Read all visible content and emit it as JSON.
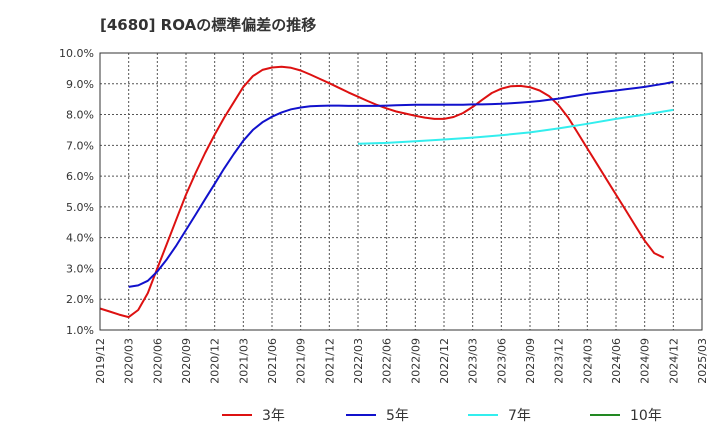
{
  "chart_data": {
    "type": "line",
    "title": "[4680]  ROAの標準偏差の推移",
    "xlabel": "",
    "ylabel": "",
    "ylim": [
      1.0,
      10.0
    ],
    "yticks": [
      "1.0%",
      "2.0%",
      "3.0%",
      "4.0%",
      "5.0%",
      "6.0%",
      "7.0%",
      "8.0%",
      "9.0%",
      "10.0%"
    ],
    "xticks": [
      "2019/12",
      "2020/03",
      "2020/06",
      "2020/09",
      "2020/12",
      "2021/03",
      "2021/06",
      "2021/09",
      "2021/12",
      "2022/03",
      "2022/06",
      "2022/09",
      "2022/12",
      "2023/03",
      "2023/06",
      "2023/09",
      "2023/12",
      "2024/03",
      "2024/06",
      "2024/09",
      "2024/12",
      "2025/03"
    ],
    "grid": true,
    "legend_position": "bottom",
    "series": [
      {
        "name": "3年",
        "color": "#dd1111",
        "points": [
          [
            "2019/12",
            1.7
          ],
          [
            "2020/01",
            1.6
          ],
          [
            "2020/02",
            1.5
          ],
          [
            "2020/03",
            1.42
          ],
          [
            "2020/04",
            1.65
          ],
          [
            "2020/05",
            2.2
          ],
          [
            "2020/06",
            3.0
          ],
          [
            "2020/07",
            3.8
          ],
          [
            "2020/08",
            4.6
          ],
          [
            "2020/09",
            5.4
          ],
          [
            "2020/10",
            6.1
          ],
          [
            "2020/11",
            6.75
          ],
          [
            "2020/12",
            7.35
          ],
          [
            "2021/01",
            7.9
          ],
          [
            "2021/02",
            8.4
          ],
          [
            "2021/03",
            8.9
          ],
          [
            "2021/04",
            9.25
          ],
          [
            "2021/05",
            9.45
          ],
          [
            "2021/06",
            9.53
          ],
          [
            "2021/07",
            9.55
          ],
          [
            "2021/08",
            9.52
          ],
          [
            "2021/09",
            9.43
          ],
          [
            "2021/10",
            9.3
          ],
          [
            "2021/11",
            9.16
          ],
          [
            "2021/12",
            9.02
          ],
          [
            "2022/01",
            8.87
          ],
          [
            "2022/02",
            8.72
          ],
          [
            "2022/03",
            8.58
          ],
          [
            "2022/04",
            8.44
          ],
          [
            "2022/05",
            8.31
          ],
          [
            "2022/06",
            8.2
          ],
          [
            "2022/07",
            8.1
          ],
          [
            "2022/08",
            8.03
          ],
          [
            "2022/09",
            7.96
          ],
          [
            "2022/10",
            7.9
          ],
          [
            "2022/11",
            7.86
          ],
          [
            "2022/12",
            7.86
          ],
          [
            "2023/01",
            7.92
          ],
          [
            "2023/02",
            8.05
          ],
          [
            "2023/03",
            8.25
          ],
          [
            "2023/04",
            8.48
          ],
          [
            "2023/05",
            8.7
          ],
          [
            "2023/06",
            8.84
          ],
          [
            "2023/07",
            8.92
          ],
          [
            "2023/08",
            8.93
          ],
          [
            "2023/09",
            8.89
          ],
          [
            "2023/10",
            8.78
          ],
          [
            "2023/11",
            8.6
          ],
          [
            "2023/12",
            8.3
          ],
          [
            "2024/01",
            7.9
          ],
          [
            "2024/02",
            7.4
          ],
          [
            "2024/03",
            6.9
          ],
          [
            "2024/04",
            6.4
          ],
          [
            "2024/05",
            5.9
          ],
          [
            "2024/06",
            5.4
          ],
          [
            "2024/07",
            4.9
          ],
          [
            "2024/08",
            4.4
          ],
          [
            "2024/09",
            3.9
          ],
          [
            "2024/10",
            3.5
          ],
          [
            "2024/11",
            3.35
          ]
        ]
      },
      {
        "name": "5年",
        "color": "#1111cc",
        "points": [
          [
            "2020/03",
            2.4
          ],
          [
            "2020/04",
            2.45
          ],
          [
            "2020/05",
            2.6
          ],
          [
            "2020/06",
            2.9
          ],
          [
            "2020/07",
            3.3
          ],
          [
            "2020/08",
            3.75
          ],
          [
            "2020/09",
            4.25
          ],
          [
            "2020/10",
            4.75
          ],
          [
            "2020/11",
            5.25
          ],
          [
            "2020/12",
            5.75
          ],
          [
            "2021/01",
            6.25
          ],
          [
            "2021/02",
            6.72
          ],
          [
            "2021/03",
            7.15
          ],
          [
            "2021/04",
            7.5
          ],
          [
            "2021/05",
            7.75
          ],
          [
            "2021/06",
            7.93
          ],
          [
            "2021/07",
            8.07
          ],
          [
            "2021/08",
            8.17
          ],
          [
            "2021/09",
            8.23
          ],
          [
            "2021/10",
            8.27
          ],
          [
            "2021/11",
            8.28
          ],
          [
            "2021/12",
            8.29
          ],
          [
            "2022/01",
            8.29
          ],
          [
            "2022/02",
            8.28
          ],
          [
            "2022/03",
            8.28
          ],
          [
            "2022/04",
            8.28
          ],
          [
            "2022/05",
            8.28
          ],
          [
            "2022/06",
            8.29
          ],
          [
            "2022/07",
            8.3
          ],
          [
            "2022/08",
            8.31
          ],
          [
            "2022/09",
            8.32
          ],
          [
            "2022/10",
            8.32
          ],
          [
            "2022/11",
            8.32
          ],
          [
            "2022/12",
            8.32
          ],
          [
            "2023/01",
            8.32
          ],
          [
            "2023/02",
            8.32
          ],
          [
            "2023/03",
            8.33
          ],
          [
            "2023/04",
            8.33
          ],
          [
            "2023/05",
            8.34
          ],
          [
            "2023/06",
            8.35
          ],
          [
            "2023/07",
            8.37
          ],
          [
            "2023/08",
            8.39
          ],
          [
            "2023/09",
            8.41
          ],
          [
            "2023/10",
            8.44
          ],
          [
            "2023/11",
            8.48
          ],
          [
            "2023/12",
            8.52
          ],
          [
            "2024/01",
            8.57
          ],
          [
            "2024/02",
            8.62
          ],
          [
            "2024/03",
            8.67
          ],
          [
            "2024/04",
            8.71
          ],
          [
            "2024/05",
            8.75
          ],
          [
            "2024/06",
            8.78
          ],
          [
            "2024/07",
            8.82
          ],
          [
            "2024/08",
            8.86
          ],
          [
            "2024/09",
            8.9
          ],
          [
            "2024/10",
            8.95
          ],
          [
            "2024/11",
            9.0
          ],
          [
            "2024/12",
            9.06
          ]
        ]
      },
      {
        "name": "7年",
        "color": "#33eeee",
        "points": [
          [
            "2022/03",
            7.05
          ],
          [
            "2022/06",
            7.08
          ],
          [
            "2022/09",
            7.13
          ],
          [
            "2022/12",
            7.19
          ],
          [
            "2023/03",
            7.25
          ],
          [
            "2023/06",
            7.33
          ],
          [
            "2023/09",
            7.42
          ],
          [
            "2023/12",
            7.55
          ],
          [
            "2024/03",
            7.7
          ],
          [
            "2024/06",
            7.86
          ],
          [
            "2024/09",
            8.0
          ],
          [
            "2024/12",
            8.15
          ]
        ]
      },
      {
        "name": "10年",
        "color": "#228822",
        "points": []
      }
    ]
  }
}
